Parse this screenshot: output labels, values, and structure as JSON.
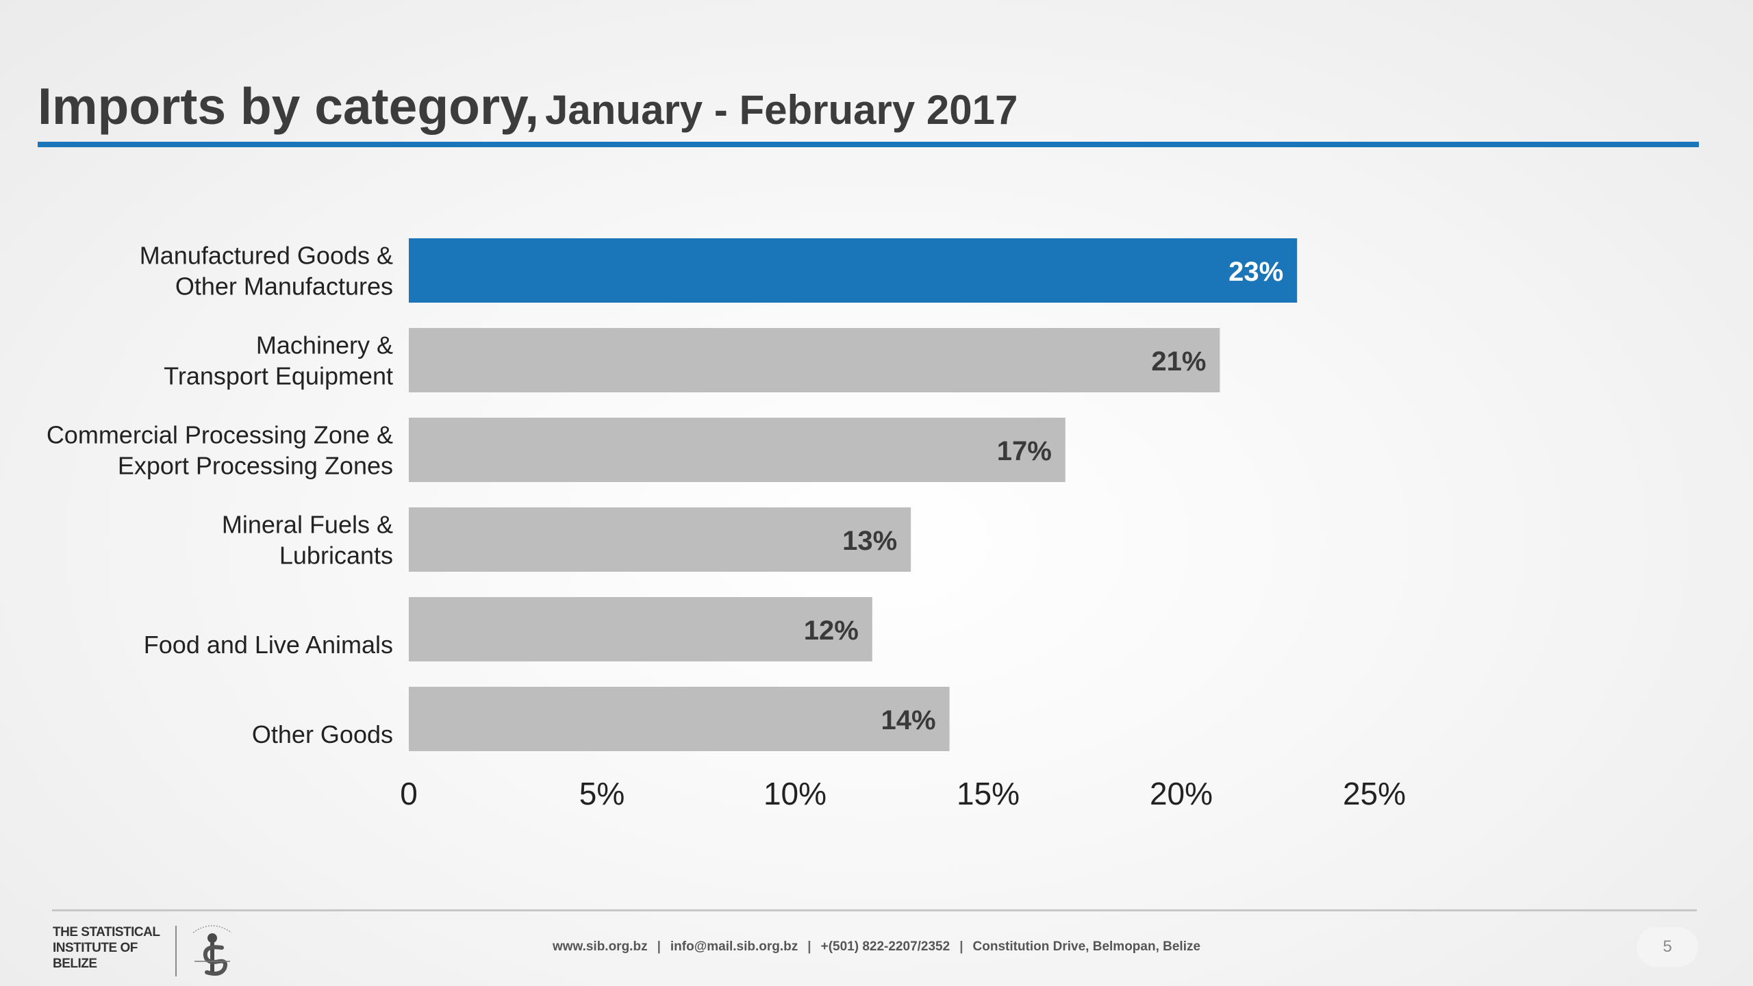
{
  "slide": {
    "title_main": "Imports by category,",
    "title_sub": "January - February 2017",
    "page_number": "5"
  },
  "colors": {
    "highlight_bar": "#1a76b9",
    "bar": "#bdbdbd",
    "highlight_label": "#ffffff",
    "bar_label": "#3a3a3a",
    "accent_rule": "#1a76b9"
  },
  "chart_data": {
    "type": "bar",
    "orientation": "horizontal",
    "title": "",
    "xlabel": "",
    "ylabel": "",
    "categories": [
      [
        "Manufactured Goods &",
        "Other Manufactures"
      ],
      [
        "Machinery &",
        "Transport Equipment"
      ],
      [
        "Commercial Processing Zone &",
        "Export Processing Zones"
      ],
      [
        "Mineral Fuels &",
        "Lubricants"
      ],
      [
        "Food and Live Animals"
      ],
      [
        "Other Goods"
      ]
    ],
    "values": [
      23,
      21,
      17,
      13,
      12,
      14
    ],
    "value_labels": [
      "23%",
      "21%",
      "17%",
      "13%",
      "12%",
      "14%"
    ],
    "highlight_index": 0,
    "xlim": [
      0,
      25
    ],
    "xticks": [
      0,
      5,
      10,
      15,
      20,
      25
    ],
    "xtick_labels": [
      "0",
      "5%",
      "10%",
      "15%",
      "20%",
      "25%"
    ],
    "grid": false,
    "legend": "none"
  },
  "footer": {
    "org_name": "THE STATISTICAL INSTITUTE OF BELIZE",
    "website": "www.sib.org.bz",
    "email": "info@mail.sib.org.bz",
    "phone": "+(501) 822-2207/2352",
    "address": "Constitution Drive, Belmopan, Belize",
    "separator": "|"
  }
}
